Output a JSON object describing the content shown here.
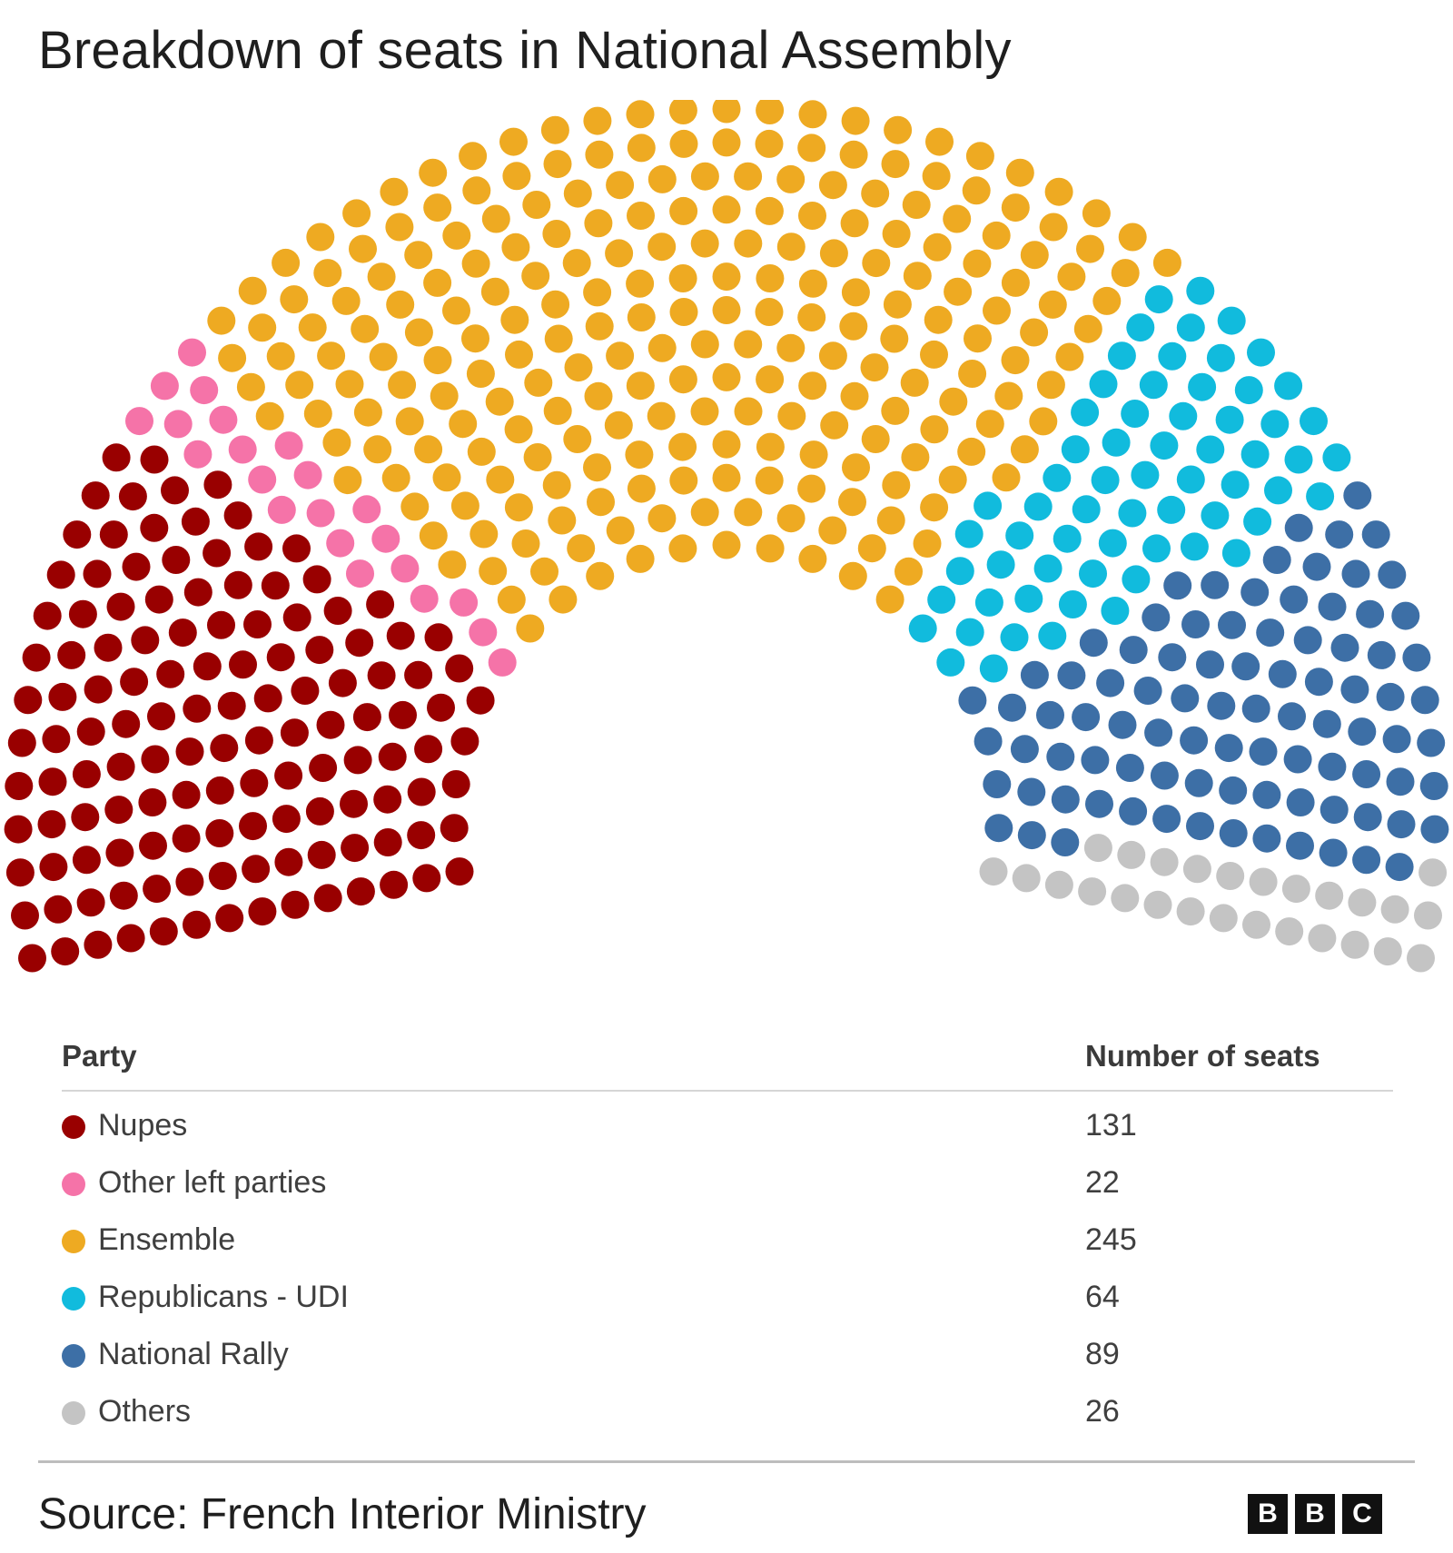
{
  "header": {
    "title": "Breakdown of seats in National Assembly"
  },
  "chart_data": {
    "type": "parliament",
    "title": "Breakdown of seats in National Assembly",
    "total_seats": 577,
    "series": [
      {
        "name": "Nupes",
        "value": 131,
        "color": "#990000"
      },
      {
        "name": "Other left parties",
        "value": 22,
        "color": "#f573a8"
      },
      {
        "name": "Ensemble",
        "value": 245,
        "color": "#eeaa22"
      },
      {
        "name": "Republicans - UDI",
        "value": 64,
        "color": "#11bbdd"
      },
      {
        "name": "National Rally",
        "value": 89,
        "color": "#3d6fa6"
      },
      {
        "name": "Others",
        "value": 26,
        "color": "#c4c4c4"
      }
    ]
  },
  "table": {
    "col_party": "Party",
    "col_seats": "Number of seats",
    "rows": [
      {
        "party": "Nupes",
        "seats": "131",
        "color": "#990000"
      },
      {
        "party": "Other left parties",
        "seats": "22",
        "color": "#f573a8"
      },
      {
        "party": "Ensemble",
        "seats": "245",
        "color": "#eeaa22"
      },
      {
        "party": "Republicans - UDI",
        "seats": "64",
        "color": "#11bbdd"
      },
      {
        "party": "National Rally",
        "seats": "89",
        "color": "#3d6fa6"
      },
      {
        "party": "Others",
        "seats": "26",
        "color": "#c4c4c4"
      }
    ]
  },
  "footer": {
    "source": "Source: French Interior Ministry",
    "logo_letters": [
      "B",
      "B",
      "C"
    ]
  }
}
